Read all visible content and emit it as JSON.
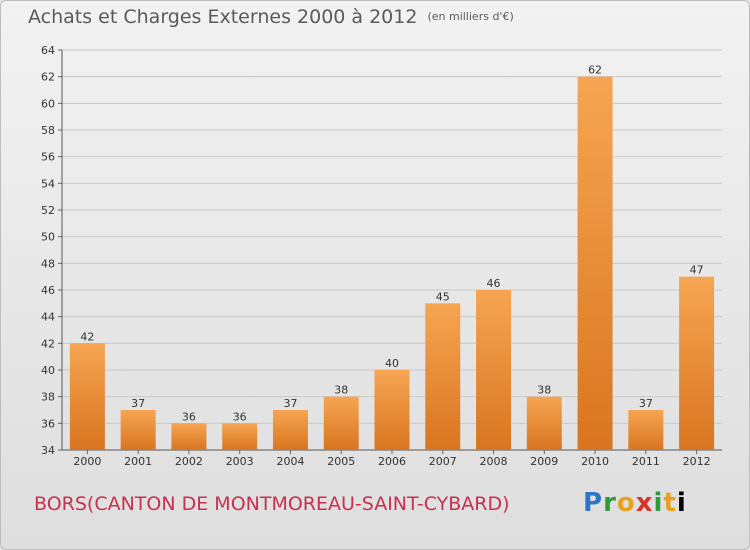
{
  "title": "Achats et Charges Externes 2000 à 2012",
  "unit": "(en milliers d'€)",
  "footer": {
    "place": "BORS(CANTON DE MONTMOREAU-SAINT-CYBARD)",
    "logo": "Proxiti"
  },
  "colors": {
    "bar_top": "#f6a553",
    "bar_bottom": "#d97520",
    "grid": "#c8c8c8",
    "place_text": "#c8304f"
  },
  "chart_data": {
    "type": "bar",
    "categories": [
      "2000",
      "2001",
      "2002",
      "2003",
      "2004",
      "2005",
      "2006",
      "2007",
      "2008",
      "2009",
      "2010",
      "2011",
      "2012"
    ],
    "values": [
      42,
      37,
      36,
      36,
      37,
      38,
      40,
      45,
      46,
      38,
      62,
      37,
      47
    ],
    "ylim": [
      34,
      64
    ],
    "yticks": [
      34,
      36,
      38,
      40,
      42,
      44,
      46,
      48,
      50,
      52,
      54,
      56,
      58,
      60,
      62,
      64
    ],
    "grid": true,
    "data_labels": true
  }
}
